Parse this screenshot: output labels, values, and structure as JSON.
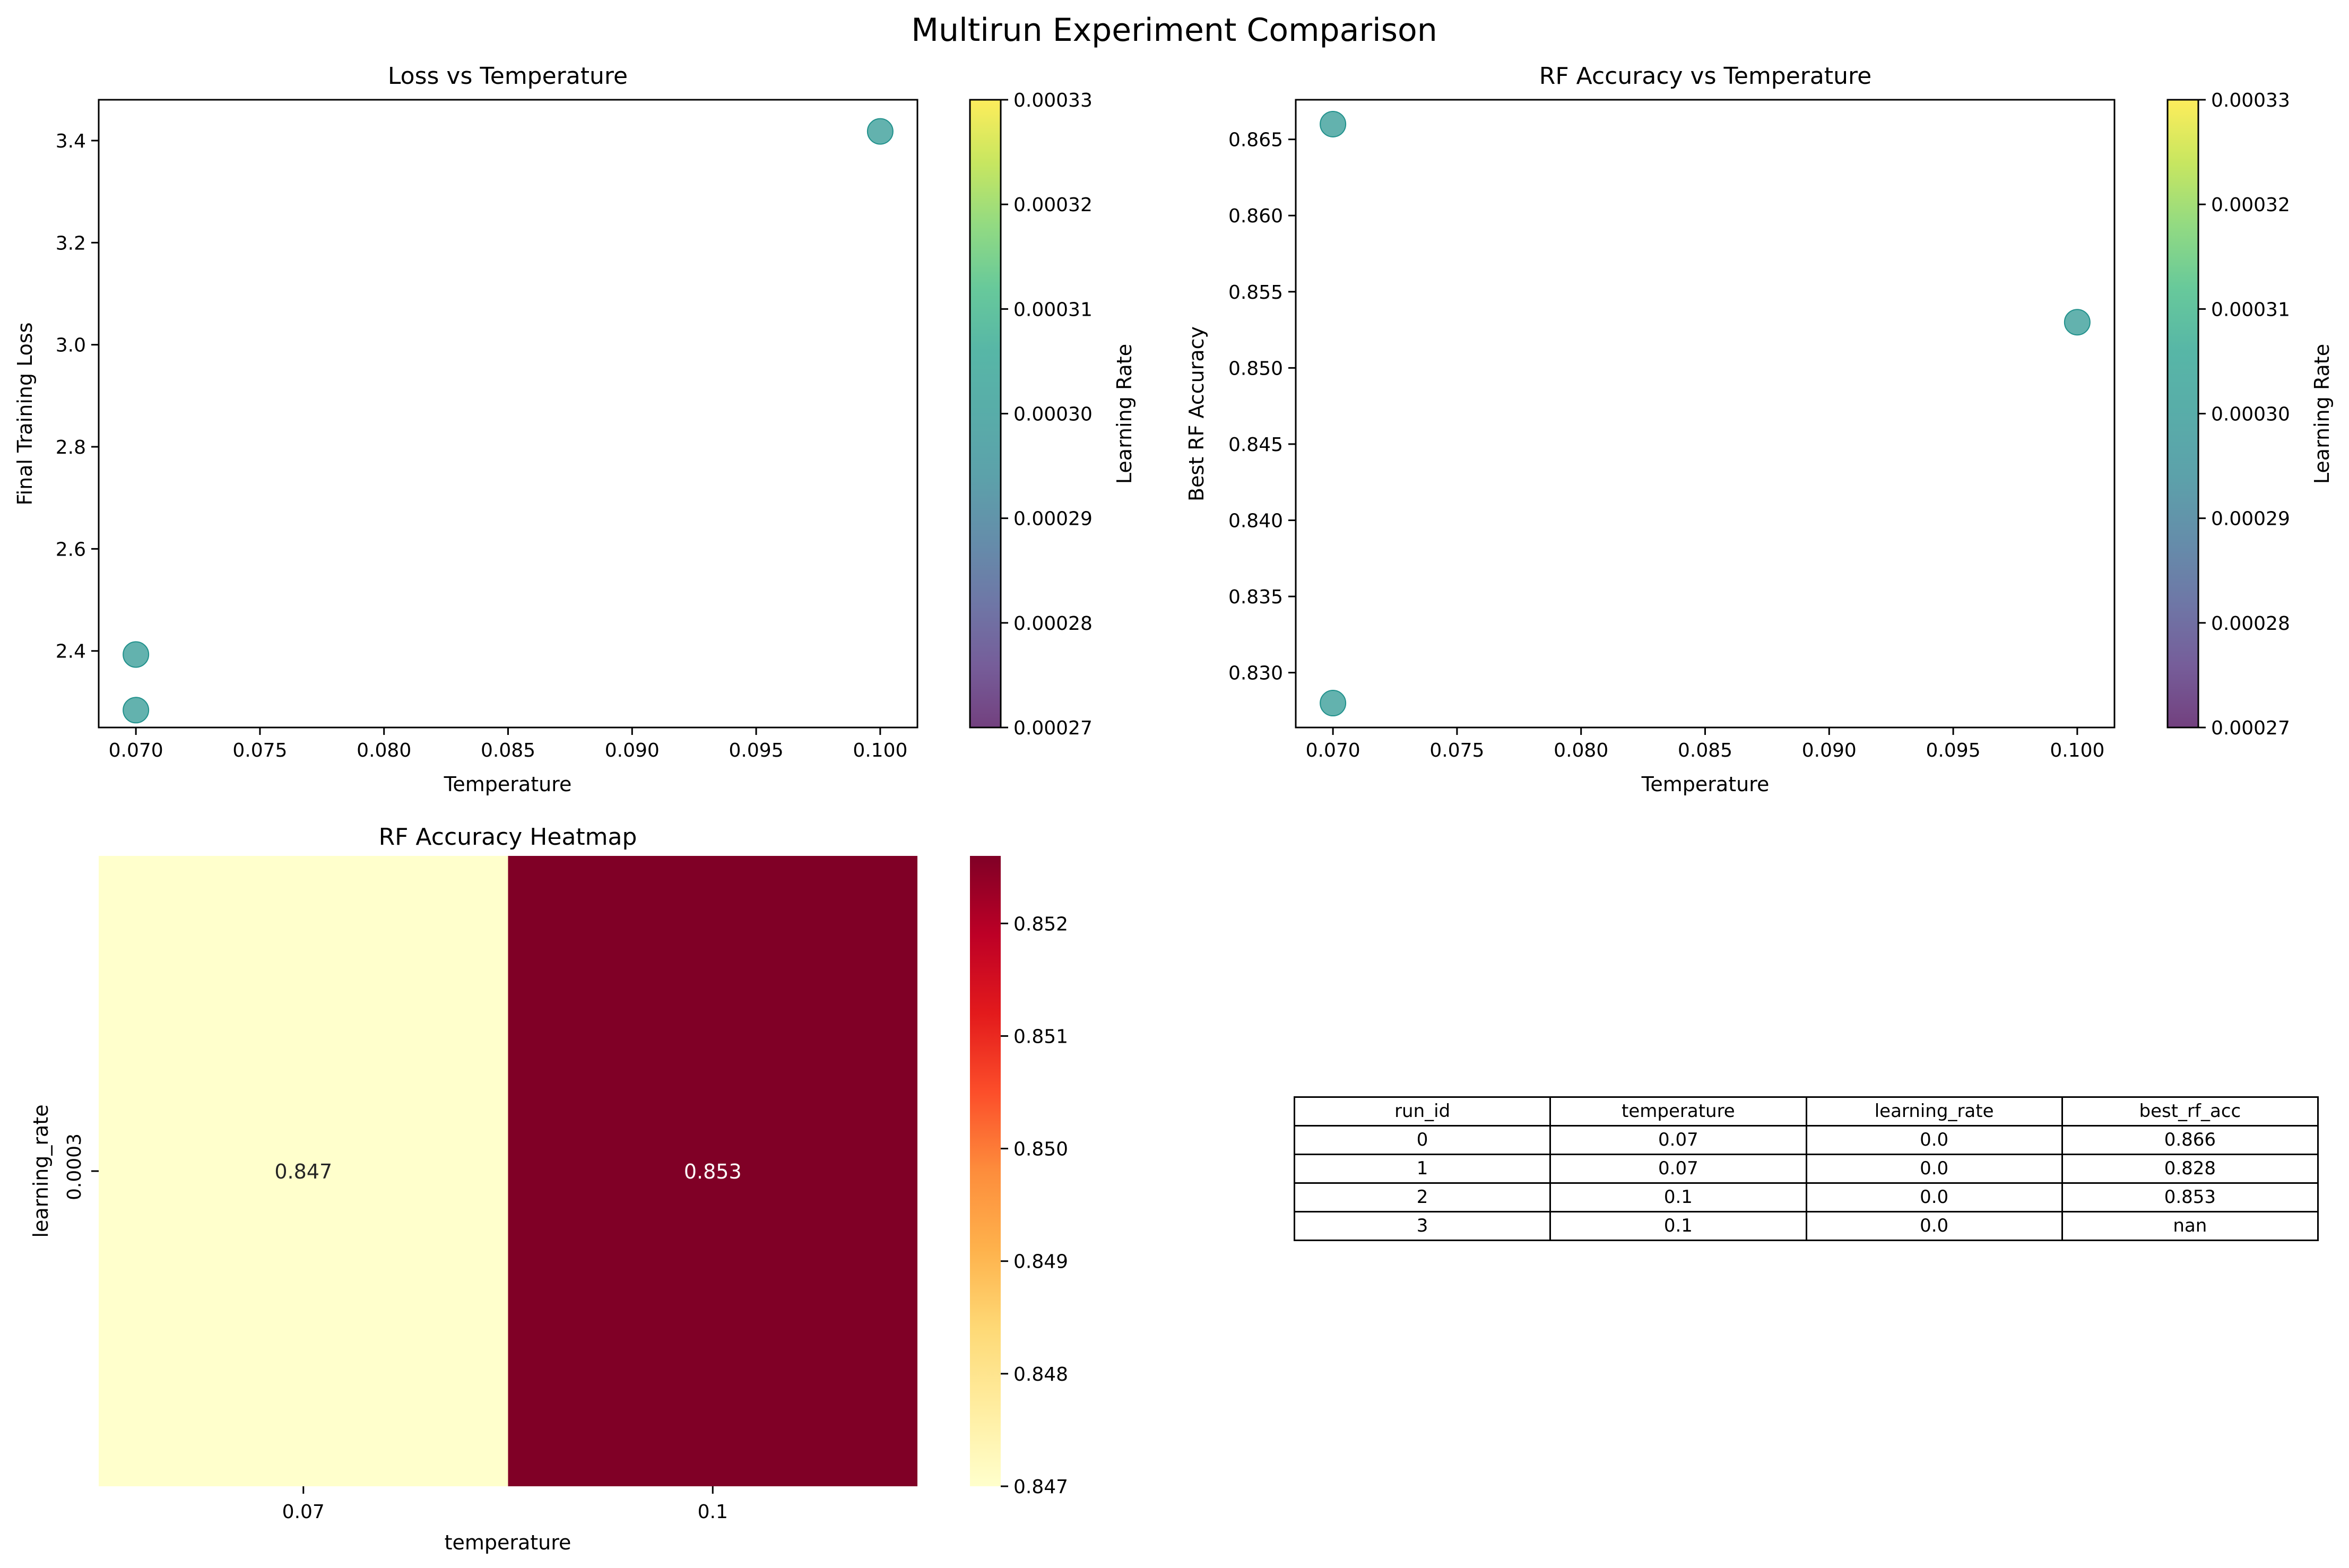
{
  "figure_title": "Multirun Experiment Comparison",
  "chart_data": [
    {
      "type": "scatter",
      "title": "Loss vs Temperature",
      "xlabel": "Temperature",
      "ylabel": "Final Training Loss",
      "xlim": [
        0.0685,
        0.1015
      ],
      "ylim": [
        2.25,
        3.48
      ],
      "xticks": [
        "0.070",
        "0.075",
        "0.080",
        "0.085",
        "0.090",
        "0.095",
        "0.100"
      ],
      "xtick_values": [
        0.07,
        0.075,
        0.08,
        0.085,
        0.09,
        0.095,
        0.1
      ],
      "yticks": [
        "2.4",
        "2.6",
        "2.8",
        "3.0",
        "3.2",
        "3.4"
      ],
      "ytick_values": [
        2.4,
        2.6,
        2.8,
        3.0,
        3.2,
        3.4
      ],
      "points": [
        {
          "x": 0.07,
          "y": 2.393
        },
        {
          "x": 0.07,
          "y": 2.284
        },
        {
          "x": 0.1,
          "y": 3.418
        }
      ],
      "point_color": "#21918c",
      "colorbar": {
        "label": "Learning Rate",
        "colormap": "viridis",
        "range": [
          0.00027,
          0.00033
        ],
        "ticks": [
          "0.00027",
          "0.00028",
          "0.00029",
          "0.00030",
          "0.00031",
          "0.00032",
          "0.00033"
        ]
      },
      "grid": false,
      "legend": "none"
    },
    {
      "type": "scatter",
      "title": "RF Accuracy vs Temperature",
      "xlabel": "Temperature",
      "ylabel": "Best RF Accuracy",
      "xlim": [
        0.0685,
        0.1015
      ],
      "ylim": [
        0.8264,
        0.8676
      ],
      "xticks": [
        "0.070",
        "0.075",
        "0.080",
        "0.085",
        "0.090",
        "0.095",
        "0.100"
      ],
      "xtick_values": [
        0.07,
        0.075,
        0.08,
        0.085,
        0.09,
        0.095,
        0.1
      ],
      "yticks": [
        "0.830",
        "0.835",
        "0.840",
        "0.845",
        "0.850",
        "0.855",
        "0.860",
        "0.865"
      ],
      "ytick_values": [
        0.83,
        0.835,
        0.84,
        0.845,
        0.85,
        0.855,
        0.86,
        0.865
      ],
      "points": [
        {
          "x": 0.07,
          "y": 0.866
        },
        {
          "x": 0.07,
          "y": 0.828
        },
        {
          "x": 0.1,
          "y": 0.853
        }
      ],
      "point_color": "#21918c",
      "colorbar": {
        "label": "Learning Rate",
        "colormap": "viridis",
        "range": [
          0.00027,
          0.00033
        ],
        "ticks": [
          "0.00027",
          "0.00028",
          "0.00029",
          "0.00030",
          "0.00031",
          "0.00032",
          "0.00033"
        ]
      },
      "grid": false,
      "legend": "none"
    },
    {
      "type": "heatmap",
      "title": "RF Accuracy Heatmap",
      "xlabel": "temperature",
      "ylabel": "learning_rate",
      "x_categories": [
        "0.07",
        "0.1"
      ],
      "y_categories": [
        "0.0003"
      ],
      "values": [
        [
          0.847,
          0.853
        ]
      ],
      "cell_labels": [
        [
          "0.847",
          "0.853"
        ]
      ],
      "cell_colors": [
        [
          "#ffffcc",
          "#800026"
        ]
      ],
      "label_color": "#ffffff",
      "colorbar": {
        "colormap": "YlOrRd",
        "range": [
          0.847,
          0.8526
        ],
        "ticks": [
          "0.847",
          "0.848",
          "0.849",
          "0.850",
          "0.851",
          "0.852"
        ],
        "tick_values": [
          0.847,
          0.848,
          0.849,
          0.85,
          0.851,
          0.852
        ]
      }
    },
    {
      "type": "table",
      "columns": [
        "run_id",
        "temperature",
        "learning_rate",
        "best_rf_acc"
      ],
      "rows": [
        [
          "0",
          "0.07",
          "0.0",
          "0.866"
        ],
        [
          "1",
          "0.07",
          "0.0",
          "0.828"
        ],
        [
          "2",
          "0.1",
          "0.0",
          "0.853"
        ],
        [
          "3",
          "0.1",
          "0.0",
          "nan"
        ]
      ]
    }
  ]
}
